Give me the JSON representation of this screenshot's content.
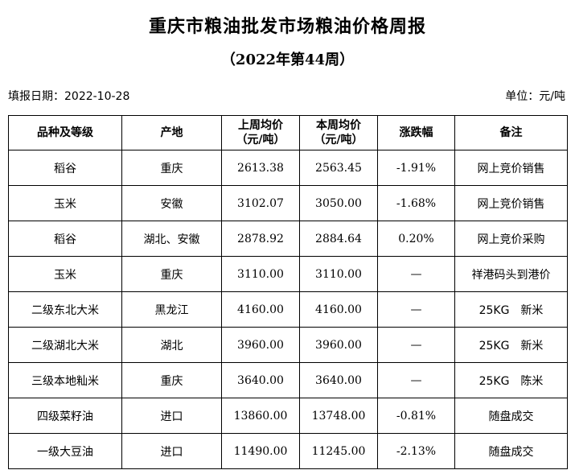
{
  "header": {
    "title": "重庆市粮油批发市场粮油价格周报",
    "subtitle": "（2022年第44周）",
    "fill_date": "填报日期：2022-10-28",
    "unit": "单位：元/吨"
  },
  "table": {
    "columns": [
      {
        "line1": "品种及等级",
        "line2": ""
      },
      {
        "line1": "产地",
        "line2": ""
      },
      {
        "line1": "上周均价",
        "line2": "（元/吨）"
      },
      {
        "line1": "本周均价",
        "line2": "（元/吨）"
      },
      {
        "line1": "涨跌幅",
        "line2": ""
      },
      {
        "line1": "备注",
        "line2": ""
      }
    ],
    "rows": [
      {
        "variety": "稻谷",
        "origin": "重庆",
        "last_week": "2613.38",
        "this_week": "2563.45",
        "change": "-1.91%",
        "note": "网上竞价销售"
      },
      {
        "variety": "玉米",
        "origin": "安徽",
        "last_week": "3102.07",
        "this_week": "3050.00",
        "change": "-1.68%",
        "note": "网上竞价销售"
      },
      {
        "variety": "稻谷",
        "origin": "湖北、安徽",
        "last_week": "2878.92",
        "this_week": "2884.64",
        "change": "0.20%",
        "note": "网上竞价采购"
      },
      {
        "variety": "玉米",
        "origin": "重庆",
        "last_week": "3110.00",
        "this_week": "3110.00",
        "change": "—",
        "note": "祥港码头到港价"
      },
      {
        "variety": "二级东北大米",
        "origin": "黑龙江",
        "last_week": "4160.00",
        "this_week": "4160.00",
        "change": "—",
        "note": "25KG　新米"
      },
      {
        "variety": "二级湖北大米",
        "origin": "湖北",
        "last_week": "3960.00",
        "this_week": "3960.00",
        "change": "—",
        "note": "25KG　新米"
      },
      {
        "variety": "三级本地籼米",
        "origin": "重庆",
        "last_week": "3640.00",
        "this_week": "3640.00",
        "change": "—",
        "note": "25KG　陈米"
      },
      {
        "variety": "四级菜籽油",
        "origin": "进口",
        "last_week": "13860.00",
        "this_week": "13748.00",
        "change": "-0.81%",
        "note": "随盘成交"
      },
      {
        "variety": "一级大豆油",
        "origin": "进口",
        "last_week": "11490.00",
        "this_week": "11245.00",
        "change": "-2.13%",
        "note": "随盘成交"
      }
    ]
  }
}
